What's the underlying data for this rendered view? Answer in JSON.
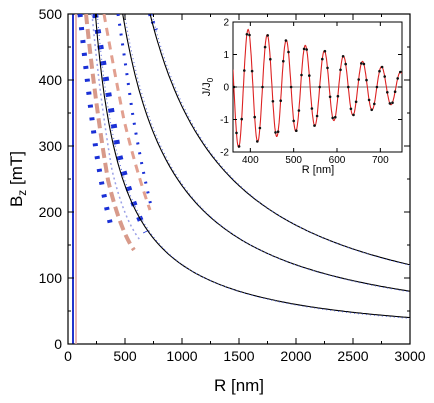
{
  "chart_data": [
    {
      "type": "line",
      "xlabel": "R [nm]",
      "ylabel": "B",
      "ylabel_subscript": "z",
      "ylabel_unit": " [mT]",
      "xlim": [
        0,
        3000
      ],
      "ylim": [
        0,
        500
      ],
      "x_ticks": [
        "0",
        "500",
        "1000",
        "1500",
        "2000",
        "2500",
        "3000"
      ],
      "y_ticks": [
        "0",
        "100",
        "200",
        "300",
        "400",
        "500"
      ],
      "grid": false,
      "hyperbola_constants": [
        120000,
        240000,
        360000
      ],
      "series": [
        {
          "x": [
            240,
            300,
            400,
            500,
            600,
            800,
            1000,
            1200,
            1500,
            1800,
            2100,
            2400,
            2700,
            3000
          ],
          "values": [
            500,
            400,
            300,
            240,
            200,
            150,
            120,
            100,
            80,
            66.7,
            57.1,
            50,
            44.4,
            40
          ]
        },
        {
          "x": [
            480,
            600,
            800,
            1000,
            1200,
            1500,
            1800,
            2100,
            2400,
            2700,
            3000
          ],
          "values": [
            500,
            400,
            300,
            240,
            200,
            160,
            133.3,
            114.3,
            100,
            88.9,
            80
          ]
        },
        {
          "x": [
            720,
            800,
            1000,
            1200,
            1500,
            1800,
            2100,
            2400,
            2700,
            3000
          ],
          "values": [
            500,
            450,
            360,
            300,
            240,
            200,
            171.4,
            150,
            133.3,
            120
          ]
        }
      ]
    },
    {
      "type": "line",
      "xlabel": "R [nm]",
      "ylabel": "J/J",
      "ylabel_subscript": "0",
      "xlim": [
        360,
        750
      ],
      "ylim": [
        -2,
        2
      ],
      "x_ticks": [
        "400",
        "500",
        "600",
        "700"
      ],
      "y_ticks": [
        "-2",
        "-1",
        "0",
        "1",
        "2"
      ],
      "grid": false,
      "oscillation": {
        "period_nm": 44,
        "amplitude_start": 1.9,
        "amplitude_end": 0.45,
        "phase_ref_nm": 395
      }
    }
  ]
}
